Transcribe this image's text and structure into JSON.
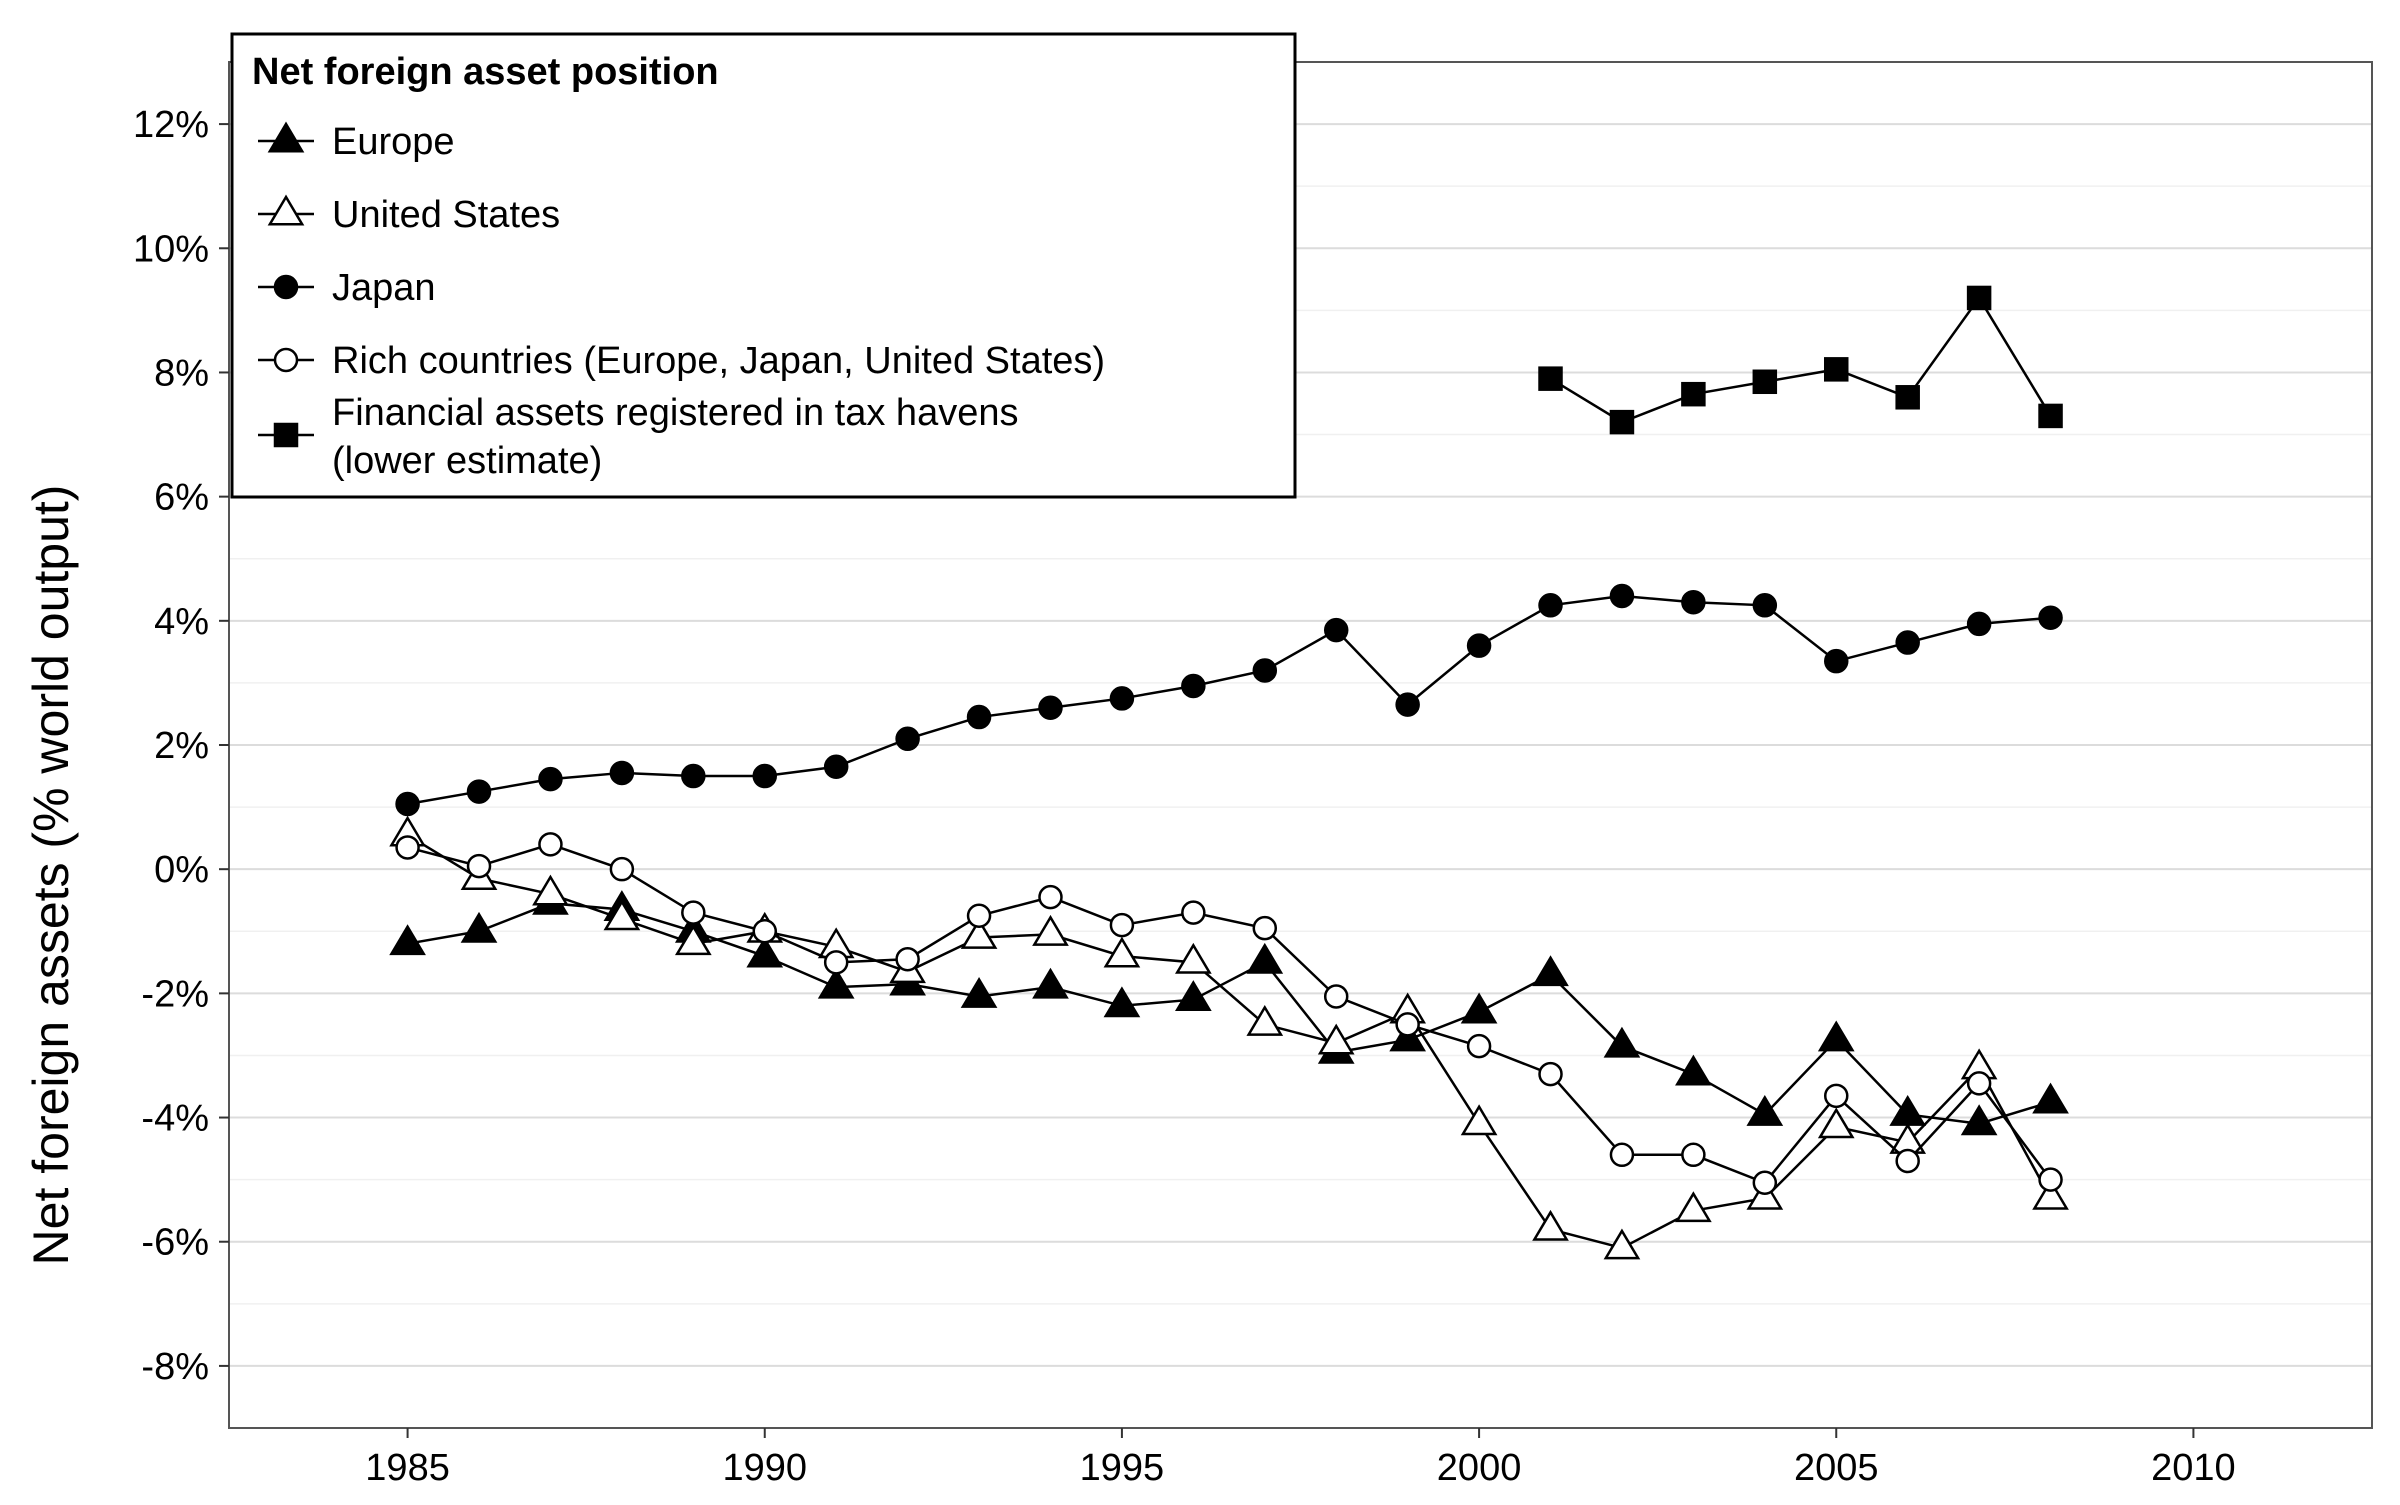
{
  "chart_data": {
    "type": "line",
    "title": "",
    "xlabel": "",
    "ylabel": "Net foreign assets (% world output)",
    "xlim": [
      1982.5,
      2012.5
    ],
    "ylim": [
      -9,
      13
    ],
    "x_ticks": [
      1985,
      1990,
      1995,
      2000,
      2005,
      2010
    ],
    "x_tick_labels": [
      "1985",
      "1990",
      "1995",
      "2000",
      "2005",
      "2010"
    ],
    "y_ticks": [
      -8,
      -6,
      -4,
      -2,
      0,
      2,
      4,
      6,
      8,
      10,
      12
    ],
    "y_tick_labels": [
      "-8%",
      "-6%",
      "-4%",
      "-2%",
      "0%",
      "2%",
      "4%",
      "6%",
      "8%",
      "10%",
      "12%"
    ],
    "grid": true,
    "legend": {
      "title": "Net foreign asset position",
      "placement": "top-left"
    },
    "series": [
      {
        "name": "Europe",
        "marker": "filled-triangle",
        "x": [
          1985,
          1986,
          1987,
          1988,
          1989,
          1990,
          1991,
          1992,
          1993,
          1994,
          1995,
          1996,
          1997,
          1998,
          1999,
          2000,
          2001,
          2002,
          2003,
          2004,
          2005,
          2006,
          2007,
          2008
        ],
        "values": [
          -1.2,
          -1.0,
          -0.55,
          -0.65,
          -1.0,
          -1.4,
          -1.9,
          -1.85,
          -2.05,
          -1.9,
          -2.2,
          -2.1,
          -1.5,
          -2.95,
          -2.75,
          -2.3,
          -1.7,
          -2.85,
          -3.3,
          -3.95,
          -2.75,
          -3.95,
          -4.1,
          -3.75
        ]
      },
      {
        "name": "United States",
        "marker": "open-triangle",
        "x": [
          1985,
          1986,
          1987,
          1988,
          1989,
          1990,
          1991,
          1992,
          1993,
          1994,
          1995,
          1996,
          1997,
          1998,
          1999,
          2000,
          2001,
          2002,
          2003,
          2004,
          2005,
          2006,
          2007,
          2008
        ],
        "values": [
          0.55,
          -0.15,
          -0.4,
          -0.8,
          -1.2,
          -1.0,
          -1.25,
          -1.65,
          -1.1,
          -1.05,
          -1.4,
          -1.5,
          -2.5,
          -2.8,
          -2.3,
          -4.1,
          -5.8,
          -6.1,
          -5.5,
          -5.3,
          -4.15,
          -4.4,
          -3.2,
          -5.3
        ]
      },
      {
        "name": "Japan",
        "marker": "filled-circle",
        "x": [
          1985,
          1986,
          1987,
          1988,
          1989,
          1990,
          1991,
          1992,
          1993,
          1994,
          1995,
          1996,
          1997,
          1998,
          1999,
          2000,
          2001,
          2002,
          2003,
          2004,
          2005,
          2006,
          2007,
          2008
        ],
        "values": [
          1.05,
          1.25,
          1.45,
          1.55,
          1.5,
          1.5,
          1.65,
          2.1,
          2.45,
          2.6,
          2.75,
          2.95,
          3.2,
          3.85,
          2.65,
          3.6,
          4.25,
          4.4,
          4.3,
          4.25,
          3.35,
          3.65,
          3.95,
          4.05
        ]
      },
      {
        "name": "Rich countries (Europe, Japan, United States)",
        "marker": "open-circle",
        "x": [
          1985,
          1986,
          1987,
          1988,
          1989,
          1990,
          1991,
          1992,
          1993,
          1994,
          1995,
          1996,
          1997,
          1998,
          1999,
          2000,
          2001,
          2002,
          2003,
          2004,
          2005,
          2006,
          2007,
          2008
        ],
        "values": [
          0.35,
          0.05,
          0.4,
          0.0,
          -0.7,
          -1.0,
          -1.5,
          -1.45,
          -0.75,
          -0.45,
          -0.9,
          -0.7,
          -0.95,
          -2.05,
          -2.5,
          -2.85,
          -3.3,
          -4.6,
          -4.6,
          -5.05,
          -3.65,
          -4.7,
          -3.45,
          -5.0
        ]
      },
      {
        "name": "Financial assets registered in tax havens (lower estimate)",
        "legend_lines": [
          "Financial assets registered in tax havens",
          "(lower estimate)"
        ],
        "marker": "filled-square",
        "x": [
          2001,
          2002,
          2003,
          2004,
          2005,
          2006,
          2007,
          2008
        ],
        "values": [
          7.9,
          7.2,
          7.65,
          7.85,
          8.05,
          7.6,
          9.2,
          7.3
        ]
      }
    ]
  }
}
